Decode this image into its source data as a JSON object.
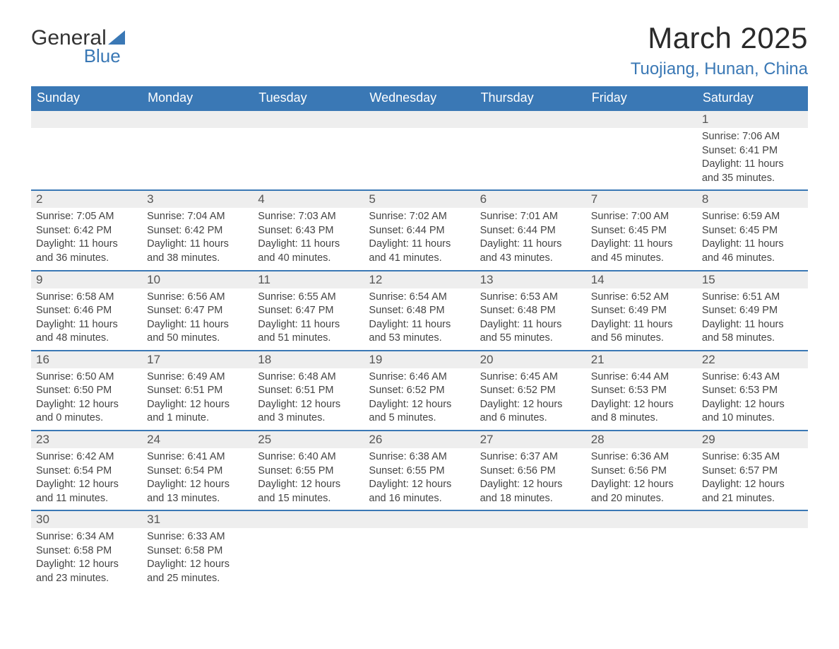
{
  "brand": {
    "word1": "General",
    "word2": "Blue"
  },
  "title": "March 2025",
  "location": "Tuojiang, Hunan, China",
  "colors": {
    "header_bg": "#3a78b5",
    "header_text": "#ffffff",
    "row_divider": "#3a78b5",
    "daynum_bg": "#eeeeee",
    "body_text": "#444444",
    "title_text": "#2a2a2a",
    "location_text": "#3a78b5"
  },
  "typography": {
    "month_title_pt": 42,
    "location_pt": 24,
    "weekday_pt": 18,
    "daynum_pt": 17,
    "body_pt": 14.5
  },
  "weekdays": [
    "Sunday",
    "Monday",
    "Tuesday",
    "Wednesday",
    "Thursday",
    "Friday",
    "Saturday"
  ],
  "labels": {
    "sunrise": "Sunrise:",
    "sunset": "Sunset:",
    "daylight": "Daylight:"
  },
  "weeks": [
    [
      {
        "blank": true
      },
      {
        "blank": true
      },
      {
        "blank": true
      },
      {
        "blank": true
      },
      {
        "blank": true
      },
      {
        "blank": true
      },
      {
        "n": "1",
        "sunrise": "7:06 AM",
        "sunset": "6:41 PM",
        "dl1": "11 hours",
        "dl2": "and 35 minutes."
      }
    ],
    [
      {
        "n": "2",
        "sunrise": "7:05 AM",
        "sunset": "6:42 PM",
        "dl1": "11 hours",
        "dl2": "and 36 minutes."
      },
      {
        "n": "3",
        "sunrise": "7:04 AM",
        "sunset": "6:42 PM",
        "dl1": "11 hours",
        "dl2": "and 38 minutes."
      },
      {
        "n": "4",
        "sunrise": "7:03 AM",
        "sunset": "6:43 PM",
        "dl1": "11 hours",
        "dl2": "and 40 minutes."
      },
      {
        "n": "5",
        "sunrise": "7:02 AM",
        "sunset": "6:44 PM",
        "dl1": "11 hours",
        "dl2": "and 41 minutes."
      },
      {
        "n": "6",
        "sunrise": "7:01 AM",
        "sunset": "6:44 PM",
        "dl1": "11 hours",
        "dl2": "and 43 minutes."
      },
      {
        "n": "7",
        "sunrise": "7:00 AM",
        "sunset": "6:45 PM",
        "dl1": "11 hours",
        "dl2": "and 45 minutes."
      },
      {
        "n": "8",
        "sunrise": "6:59 AM",
        "sunset": "6:45 PM",
        "dl1": "11 hours",
        "dl2": "and 46 minutes."
      }
    ],
    [
      {
        "n": "9",
        "sunrise": "6:58 AM",
        "sunset": "6:46 PM",
        "dl1": "11 hours",
        "dl2": "and 48 minutes."
      },
      {
        "n": "10",
        "sunrise": "6:56 AM",
        "sunset": "6:47 PM",
        "dl1": "11 hours",
        "dl2": "and 50 minutes."
      },
      {
        "n": "11",
        "sunrise": "6:55 AM",
        "sunset": "6:47 PM",
        "dl1": "11 hours",
        "dl2": "and 51 minutes."
      },
      {
        "n": "12",
        "sunrise": "6:54 AM",
        "sunset": "6:48 PM",
        "dl1": "11 hours",
        "dl2": "and 53 minutes."
      },
      {
        "n": "13",
        "sunrise": "6:53 AM",
        "sunset": "6:48 PM",
        "dl1": "11 hours",
        "dl2": "and 55 minutes."
      },
      {
        "n": "14",
        "sunrise": "6:52 AM",
        "sunset": "6:49 PM",
        "dl1": "11 hours",
        "dl2": "and 56 minutes."
      },
      {
        "n": "15",
        "sunrise": "6:51 AM",
        "sunset": "6:49 PM",
        "dl1": "11 hours",
        "dl2": "and 58 minutes."
      }
    ],
    [
      {
        "n": "16",
        "sunrise": "6:50 AM",
        "sunset": "6:50 PM",
        "dl1": "12 hours",
        "dl2": "and 0 minutes."
      },
      {
        "n": "17",
        "sunrise": "6:49 AM",
        "sunset": "6:51 PM",
        "dl1": "12 hours",
        "dl2": "and 1 minute."
      },
      {
        "n": "18",
        "sunrise": "6:48 AM",
        "sunset": "6:51 PM",
        "dl1": "12 hours",
        "dl2": "and 3 minutes."
      },
      {
        "n": "19",
        "sunrise": "6:46 AM",
        "sunset": "6:52 PM",
        "dl1": "12 hours",
        "dl2": "and 5 minutes."
      },
      {
        "n": "20",
        "sunrise": "6:45 AM",
        "sunset": "6:52 PM",
        "dl1": "12 hours",
        "dl2": "and 6 minutes."
      },
      {
        "n": "21",
        "sunrise": "6:44 AM",
        "sunset": "6:53 PM",
        "dl1": "12 hours",
        "dl2": "and 8 minutes."
      },
      {
        "n": "22",
        "sunrise": "6:43 AM",
        "sunset": "6:53 PM",
        "dl1": "12 hours",
        "dl2": "and 10 minutes."
      }
    ],
    [
      {
        "n": "23",
        "sunrise": "6:42 AM",
        "sunset": "6:54 PM",
        "dl1": "12 hours",
        "dl2": "and 11 minutes."
      },
      {
        "n": "24",
        "sunrise": "6:41 AM",
        "sunset": "6:54 PM",
        "dl1": "12 hours",
        "dl2": "and 13 minutes."
      },
      {
        "n": "25",
        "sunrise": "6:40 AM",
        "sunset": "6:55 PM",
        "dl1": "12 hours",
        "dl2": "and 15 minutes."
      },
      {
        "n": "26",
        "sunrise": "6:38 AM",
        "sunset": "6:55 PM",
        "dl1": "12 hours",
        "dl2": "and 16 minutes."
      },
      {
        "n": "27",
        "sunrise": "6:37 AM",
        "sunset": "6:56 PM",
        "dl1": "12 hours",
        "dl2": "and 18 minutes."
      },
      {
        "n": "28",
        "sunrise": "6:36 AM",
        "sunset": "6:56 PM",
        "dl1": "12 hours",
        "dl2": "and 20 minutes."
      },
      {
        "n": "29",
        "sunrise": "6:35 AM",
        "sunset": "6:57 PM",
        "dl1": "12 hours",
        "dl2": "and 21 minutes."
      }
    ],
    [
      {
        "n": "30",
        "sunrise": "6:34 AM",
        "sunset": "6:58 PM",
        "dl1": "12 hours",
        "dl2": "and 23 minutes."
      },
      {
        "n": "31",
        "sunrise": "6:33 AM",
        "sunset": "6:58 PM",
        "dl1": "12 hours",
        "dl2": "and 25 minutes."
      },
      {
        "blank": true
      },
      {
        "blank": true
      },
      {
        "blank": true
      },
      {
        "blank": true
      },
      {
        "blank": true
      }
    ]
  ]
}
